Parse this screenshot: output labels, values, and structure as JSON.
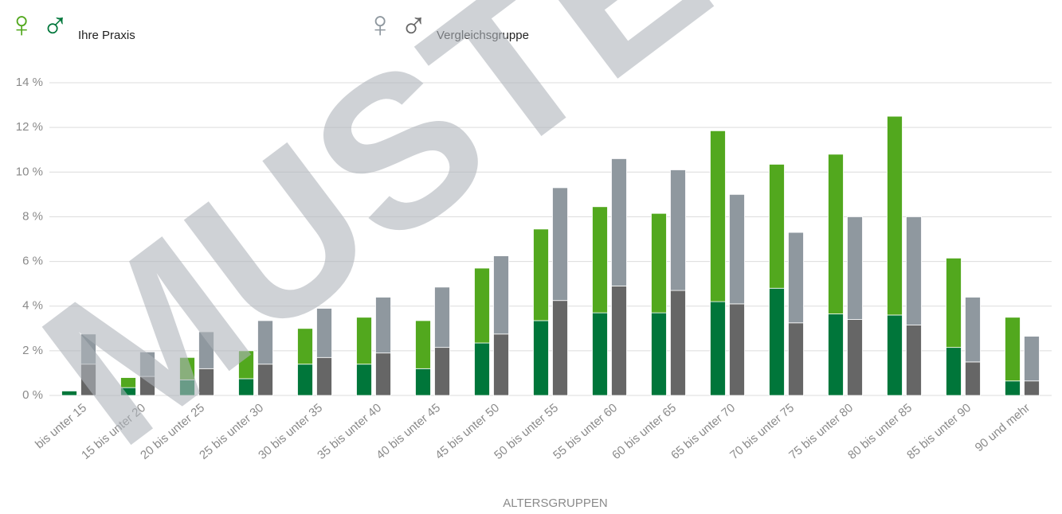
{
  "chart_data": {
    "type": "grouped-stacked-bar",
    "x_label": "ALTERSGRUPPEN",
    "watermark": "MUSTER",
    "categories": [
      "bis unter 15",
      "15 bis unter 20",
      "20 bis unter 25",
      "25 bis unter 30",
      "30 bis unter 35",
      "35 bis unter 40",
      "40 bis unter 45",
      "45 bis unter 50",
      "50 bis unter 55",
      "55 bis unter 60",
      "60 bis unter 65",
      "65 bis unter 70",
      "70 bis unter 75",
      "75 bis unter 80",
      "80 bis unter 85",
      "85 bis unter 90",
      "90 und mehr"
    ],
    "groups": [
      {
        "name": "Ihre Praxis",
        "series": [
          {
            "name": "♂",
            "color": "#00763a",
            "values": [
              0.2,
              0.35,
              0.7,
              0.75,
              1.4,
              1.4,
              1.2,
              2.35,
              3.35,
              3.7,
              3.7,
              4.2,
              4.8,
              3.65,
              3.6,
              2.15,
              0.65
            ]
          },
          {
            "name": "♀",
            "color": "#52a81e",
            "values": [
              0,
              0.45,
              1.0,
              1.25,
              1.6,
              2.1,
              2.15,
              3.35,
              4.1,
              4.75,
              4.45,
              7.65,
              5.55,
              7.15,
              8.9,
              4.0,
              2.85
            ]
          }
        ]
      },
      {
        "name": "Vergleichsgruppe",
        "series": [
          {
            "name": "♂",
            "color": "#666666",
            "values": [
              1.4,
              0.85,
              1.2,
              1.4,
              1.7,
              1.9,
              2.15,
              2.75,
              4.25,
              4.9,
              4.7,
              4.1,
              3.25,
              3.4,
              3.15,
              1.5,
              0.65
            ]
          },
          {
            "name": "♀",
            "color": "#8f989f",
            "values": [
              1.35,
              1.1,
              1.65,
              1.95,
              2.2,
              2.5,
              2.7,
              3.5,
              5.05,
              5.7,
              5.4,
              4.9,
              4.05,
              4.6,
              4.85,
              2.9,
              2.0
            ]
          }
        ]
      }
    ],
    "ylim": [
      0,
      14
    ],
    "yticks": [
      {
        "value": 0,
        "label": "0 %"
      },
      {
        "value": 2,
        "label": "2 %"
      },
      {
        "value": 4,
        "label": "4 %"
      },
      {
        "value": 6,
        "label": "6 %"
      },
      {
        "value": 8,
        "label": "8 %"
      },
      {
        "value": 10,
        "label": "10 %"
      },
      {
        "value": 12,
        "label": "12 %"
      },
      {
        "value": 14,
        "label": "14 %"
      }
    ],
    "grid": true
  }
}
